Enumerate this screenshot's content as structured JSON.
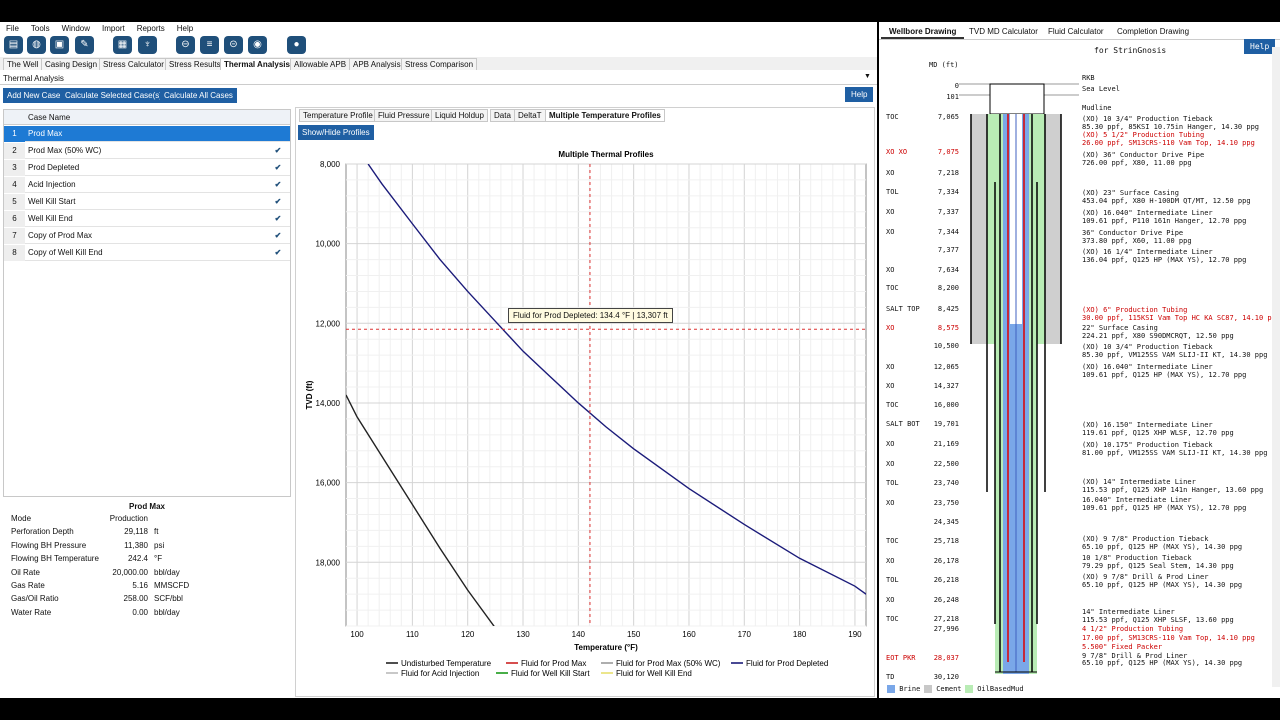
{
  "menu": [
    "File",
    "Tools",
    "Window",
    "Import",
    "Reports",
    "Help"
  ],
  "toolbar_icons": [
    "new-icon",
    "open-icon",
    "save-icon",
    "edit-icon",
    "calculator-icon",
    "valve-icon",
    "pipe-icon",
    "stack-icon",
    "connector-icon",
    "globe-icon",
    "drop-icon"
  ],
  "tabs": [
    "The Well",
    "Casing Design",
    "Stress Calculator",
    "Stress Results",
    "Thermal Analysis",
    "Allowable APB",
    "APB Analysis",
    "Stress Comparison"
  ],
  "active_tab": "Thermal Analysis",
  "analysis_selector": "Thermal Analysis",
  "buttons": {
    "add": "Add New Case",
    "calc_selected": "Calculate Selected Case(s)",
    "calc_all": "Calculate All Cases",
    "help": "Help",
    "help2": "Help",
    "show_hide": "Show/Hide Profiles"
  },
  "case_table": {
    "header": "Case Name",
    "rows": [
      {
        "n": "1",
        "name": "Prod Max"
      },
      {
        "n": "2",
        "name": "Prod Max (50% WC)"
      },
      {
        "n": "3",
        "name": "Prod Depleted"
      },
      {
        "n": "4",
        "name": "Acid Injection"
      },
      {
        "n": "5",
        "name": "Well Kill Start"
      },
      {
        "n": "6",
        "name": "Well Kill End"
      },
      {
        "n": "7",
        "name": "Copy of Prod Max"
      },
      {
        "n": "8",
        "name": "Copy of Well Kill End"
      }
    ]
  },
  "props": {
    "title": "Prod Max",
    "rows": [
      {
        "label": "Mode",
        "value": "Production",
        "unit": ""
      },
      {
        "label": "Perforation Depth",
        "value": "29,118",
        "unit": "ft"
      },
      {
        "label": "Flowing BH Pressure",
        "value": "11,380",
        "unit": "psi"
      },
      {
        "label": "Flowing BH Temperature",
        "value": "242.4",
        "unit": "°F"
      },
      {
        "label": "Oil Rate",
        "value": "20,000.00",
        "unit": "bbl/day"
      },
      {
        "label": "Gas Rate",
        "value": "5.16",
        "unit": "MMSCFD"
      },
      {
        "label": "Gas/Oil Ratio",
        "value": "258.00",
        "unit": "SCF/bbl"
      },
      {
        "label": "Water Rate",
        "value": "0.00",
        "unit": "bbl/day"
      }
    ]
  },
  "chart_tabs": [
    "Temperature Profile",
    "Fluid Pressure",
    "Liquid Holdup",
    "Data",
    "DeltaT",
    "Multiple Temperature Profiles"
  ],
  "tooltip": "Fluid for Prod Depleted: 134.4 °F | 13,307 ft",
  "chart_data": {
    "type": "line",
    "title": "Multiple Thermal Profiles",
    "xlabel": "Temperature (°F)",
    "ylabel": "TVD (ft)",
    "xlim": [
      98,
      192
    ],
    "ylim": [
      8000,
      19600
    ],
    "y_inverted": true,
    "x_ticks": [
      "100",
      "110",
      "120",
      "130",
      "140",
      "150",
      "160",
      "170",
      "180",
      "190"
    ],
    "y_ticks": [
      "8,000",
      "10,000",
      "12,000",
      "14,000",
      "16,000",
      "18,000"
    ],
    "grid": true,
    "series": [
      {
        "name": "Fluid for Prod Depleted",
        "color": "#1b1b7a",
        "x": [
          102.0,
          104.5,
          110,
          115,
          120,
          125,
          130,
          135,
          140,
          145,
          150,
          160,
          170,
          180,
          190,
          193
        ],
        "y": [
          8000,
          8500,
          9500,
          10400,
          11200,
          11950,
          12700,
          13350,
          14000,
          14600,
          15150,
          16150,
          17050,
          17900,
          18600,
          18900
        ]
      },
      {
        "name": "Undisturbed Temperature",
        "color": "#222222",
        "x": [
          98,
          100,
          105,
          110,
          115,
          120,
          125,
          126.4
        ],
        "y": [
          13800,
          14350,
          15450,
          16550,
          17650,
          18700,
          19650,
          19900
        ]
      }
    ],
    "crosshair": {
      "x": 142.1,
      "y": 12150
    },
    "legend": [
      "Undisturbed Temperature",
      "Fluid for Prod Max",
      "Fluid for Prod Max (50% WC)",
      "Fluid for Prod Depleted",
      "Fluid for Acid Injection",
      "Fluid for Well Kill Start",
      "Fluid for Well Kill End"
    ],
    "legend_colors": [
      "#222222",
      "#cc2222",
      "#999999",
      "#1b1b7a",
      "#bbbbbb",
      "#1a9a1a",
      "#e8e070"
    ]
  },
  "right_tabs": [
    "Wellbore Drawing",
    "TVD MD Calculator",
    "Fluid Calculator",
    "Completion Drawing"
  ],
  "wellbore": {
    "subtitle": "for StrinGnosis",
    "md_label": "MD (ft)",
    "depth_labels": [
      {
        "tag": "",
        "md": "0"
      },
      {
        "tag": "",
        "md": "101"
      },
      {
        "tag": "TOC",
        "md": "7,065"
      },
      {
        "tag": "XO XO",
        "md": "7,075",
        "red": true
      },
      {
        "tag": "XO",
        "md": "7,218"
      },
      {
        "tag": "TOL",
        "md": "7,334"
      },
      {
        "tag": "XO",
        "md": "7,337"
      },
      {
        "tag": "XO",
        "md": "7,344"
      },
      {
        "tag": "",
        "md": "7,377"
      },
      {
        "tag": "XO",
        "md": "7,634"
      },
      {
        "tag": "TOC",
        "md": "8,200"
      },
      {
        "tag": "SALT TOP",
        "md": "8,425"
      },
      {
        "tag": "XO",
        "md": "8,575",
        "red": true
      },
      {
        "tag": "",
        "md": "10,500"
      },
      {
        "tag": "XO",
        "md": "12,065"
      },
      {
        "tag": "XO",
        "md": "14,327"
      },
      {
        "tag": "TOC",
        "md": "16,000"
      },
      {
        "tag": "SALT BOT",
        "md": "19,701"
      },
      {
        "tag": "XO",
        "md": "21,169"
      },
      {
        "tag": "XO",
        "md": "22,500"
      },
      {
        "tag": "TOL",
        "md": "23,740"
      },
      {
        "tag": "XO",
        "md": "23,750"
      },
      {
        "tag": "",
        "md": "24,345"
      },
      {
        "tag": "TOC",
        "md": "25,718"
      },
      {
        "tag": "XO",
        "md": "26,178"
      },
      {
        "tag": "TOL",
        "md": "26,218"
      },
      {
        "tag": "XO",
        "md": "26,248"
      },
      {
        "tag": "TOC",
        "md": "27,218"
      },
      {
        "tag": "",
        "md": "27,996"
      },
      {
        "tag": "EOT PKR",
        "md": "28,037",
        "red": true
      },
      {
        "tag": "TD",
        "md": "30,120"
      }
    ],
    "annotations": [
      {
        "t": "RKB"
      },
      {
        "t": "Sea Level"
      },
      {
        "t": "Mudline"
      },
      {
        "t": "(XO) 10 3/4\" Production Tieback"
      },
      {
        "t": "85.30 ppf, 85KSI 10.75in Hanger, 14.30 ppg"
      },
      {
        "t": "(XO) 5 1/2\" Production Tubing",
        "red": true
      },
      {
        "t": "26.00 ppf, SM13CRS-110 Vam Top, 14.10 ppg",
        "red": true
      },
      {
        "t": "(XO) 36\" Conductor Drive Pipe"
      },
      {
        "t": "726.00 ppf, X80, 11.00 ppg"
      },
      {
        "t": "(XO) 23\" Surface Casing"
      },
      {
        "t": "453.04 ppf, X80 H-100DM QT/MT, 12.50 ppg"
      },
      {
        "t": "(XO) 16.040\" Intermediate Liner"
      },
      {
        "t": "109.61 ppf, P110 161n Hanger, 12.70 ppg"
      },
      {
        "t": "36\" Conductor Drive Pipe"
      },
      {
        "t": "373.80 ppf, X60, 11.00 ppg"
      },
      {
        "t": "(XO) 16 1/4\" Intermediate Liner"
      },
      {
        "t": "136.04 ppf, Q125 HP (MAX YS), 12.70 ppg"
      },
      {
        "t": "(XO) 6\" Production Tubing",
        "red": true
      },
      {
        "t": "30.00 ppf, 115KSI Vam Top HC KA SC87, 14.10 ppg",
        "red": true
      },
      {
        "t": "22\" Surface Casing"
      },
      {
        "t": "224.21 ppf, X80 S90DMCRQT, 12.50 ppg"
      },
      {
        "t": "(XO) 10 3/4\" Production Tieback"
      },
      {
        "t": "85.30 ppf, VM125SS VAM SLIJ-II KT, 14.30 ppg"
      },
      {
        "t": "(XO) 16.040\" Intermediate Liner"
      },
      {
        "t": "109.61 ppf, Q125 HP (MAX YS), 12.70 ppg"
      },
      {
        "t": "(XO) 16.150\" Intermediate Liner"
      },
      {
        "t": "119.61 ppf, Q125 XHP WLSF, 12.70 ppg"
      },
      {
        "t": "(XO) 10.175\" Production Tieback"
      },
      {
        "t": "81.00 ppf, VM125SS VAM SLIJ-II KT, 14.30 ppg"
      },
      {
        "t": "(XO) 14\" Intermediate Liner"
      },
      {
        "t": "115.53 ppf, Q125 XHP 141n Hanger, 13.60 ppg"
      },
      {
        "t": "16.040\" Intermediate Liner"
      },
      {
        "t": "109.61 ppf, Q125 HP (MAX YS), 12.70 ppg"
      },
      {
        "t": "(XO) 9 7/8\" Production Tieback"
      },
      {
        "t": "65.10 ppf, Q125 HP (MAX YS), 14.30 ppg"
      },
      {
        "t": "10 1/8\" Production Tieback"
      },
      {
        "t": "79.29 ppf, Q125 Seal Stem, 14.30 ppg"
      },
      {
        "t": "(XO) 9 7/8\" Drill & Prod Liner"
      },
      {
        "t": "65.10 ppf, Q125 HP (MAX YS), 14.30 ppg"
      },
      {
        "t": "14\" Intermediate Liner"
      },
      {
        "t": "115.53 ppf, Q125 XHP SLSF, 13.60 ppg"
      },
      {
        "t": "4 1/2\" Production Tubing",
        "red": true
      },
      {
        "t": "17.00 ppf, SM13CRS-110 Vam Top, 14.10 ppg",
        "red": true
      },
      {
        "t": "5.500\" Fixed Packer",
        "red": true
      },
      {
        "t": "9 7/8\" Drill & Prod Liner"
      },
      {
        "t": "65.10 ppf, Q125 HP (MAX YS), 14.30 ppg"
      }
    ],
    "legend": [
      {
        "name": "Brine",
        "color": "#7aa7e8"
      },
      {
        "name": "Cement",
        "color": "#c8c8c8"
      },
      {
        "name": "OilBasedMud",
        "color": "#b9ecb5"
      }
    ]
  }
}
